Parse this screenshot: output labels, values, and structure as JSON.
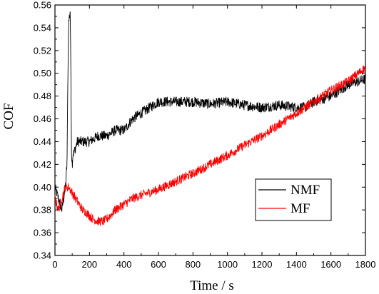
{
  "chart_data": {
    "type": "line",
    "title": "",
    "xlabel": "Time / s",
    "ylabel": "COF",
    "xlim": [
      0,
      1800
    ],
    "ylim": [
      0.34,
      0.56
    ],
    "x_ticks": [
      0,
      200,
      400,
      600,
      800,
      1000,
      1200,
      1400,
      1600,
      1800
    ],
    "y_ticks": [
      0.34,
      0.36,
      0.38,
      0.4,
      0.42,
      0.44,
      0.46,
      0.48,
      0.5,
      0.52,
      0.54,
      0.56
    ],
    "x_tick_labels": [
      "0",
      "200",
      "400",
      "600",
      "800",
      "1000",
      "1200",
      "1400",
      "1600",
      "1800"
    ],
    "y_tick_labels": [
      "0.34",
      "0.36",
      "0.38",
      "0.40",
      "0.42",
      "0.44",
      "0.46",
      "0.48",
      "0.50",
      "0.52",
      "0.54",
      "0.56"
    ],
    "grid": false,
    "legend": "center-right",
    "series": [
      {
        "name": "NMF",
        "color": "#000000",
        "x": [
          0,
          20,
          40,
          60,
          70,
          75,
          80,
          84,
          88,
          92,
          96,
          100,
          105,
          110,
          130,
          160,
          200,
          250,
          300,
          350,
          400,
          450,
          500,
          550,
          600,
          650,
          700,
          750,
          800,
          900,
          1000,
          1100,
          1200,
          1300,
          1400,
          1450,
          1500,
          1600,
          1700,
          1800
        ],
        "y": [
          0.4,
          0.39,
          0.38,
          0.4,
          0.42,
          0.5,
          0.545,
          0.55,
          0.555,
          0.51,
          0.43,
          0.42,
          0.43,
          0.43,
          0.44,
          0.44,
          0.44,
          0.445,
          0.445,
          0.45,
          0.45,
          0.46,
          0.465,
          0.47,
          0.475,
          0.475,
          0.475,
          0.475,
          0.475,
          0.473,
          0.475,
          0.472,
          0.47,
          0.472,
          0.47,
          0.47,
          0.475,
          0.48,
          0.49,
          0.495
        ]
      },
      {
        "name": "MF",
        "color": "#ff0000",
        "x": [
          0,
          20,
          40,
          60,
          80,
          100,
          120,
          140,
          160,
          180,
          200,
          220,
          250,
          280,
          300,
          320,
          350,
          400,
          450,
          500,
          600,
          700,
          800,
          900,
          1000,
          1100,
          1200,
          1300,
          1400,
          1450,
          1500,
          1600,
          1700,
          1800
        ],
        "y": [
          0.39,
          0.38,
          0.39,
          0.4,
          0.4,
          0.395,
          0.39,
          0.385,
          0.38,
          0.378,
          0.375,
          0.372,
          0.37,
          0.37,
          0.372,
          0.375,
          0.38,
          0.385,
          0.39,
          0.393,
          0.398,
          0.405,
          0.412,
          0.42,
          0.428,
          0.437,
          0.445,
          0.455,
          0.465,
          0.47,
          0.475,
          0.485,
          0.493,
          0.505
        ]
      }
    ]
  }
}
